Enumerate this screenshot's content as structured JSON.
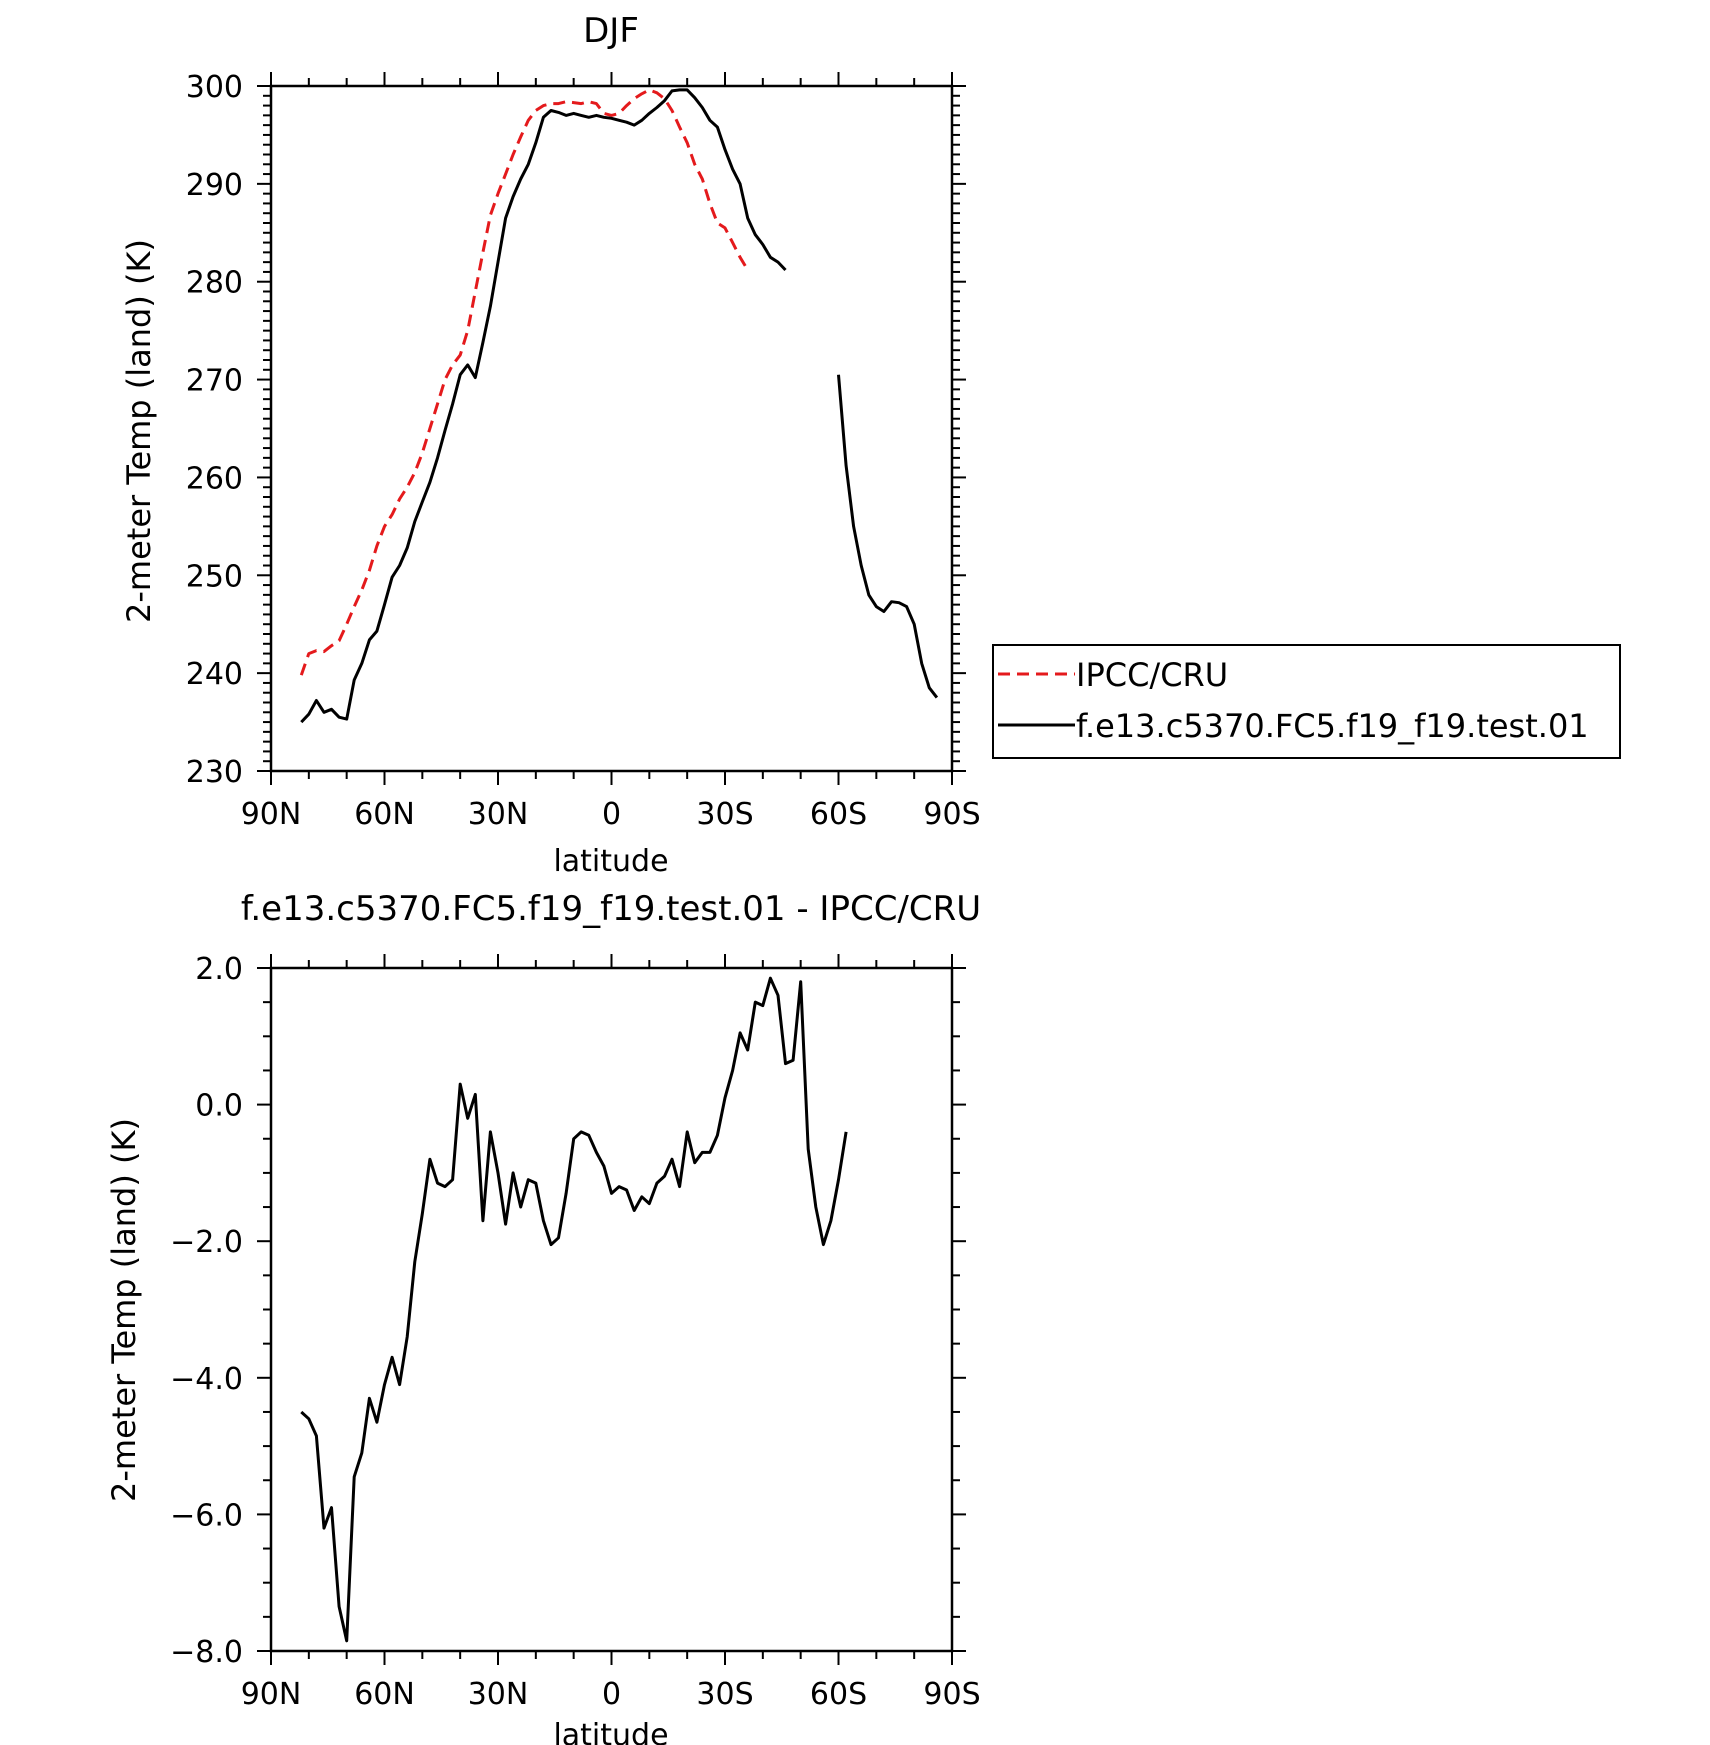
{
  "chart_data": [
    {
      "type": "line",
      "title": "DJF",
      "xlabel": "latitude",
      "ylabel": "2-meter Temp (land) (K)",
      "xlim": [
        90,
        -90
      ],
      "ylim": [
        230,
        300
      ],
      "xticks": [
        90,
        60,
        30,
        0,
        -30,
        -60,
        -90
      ],
      "xtick_labels": [
        "90N",
        "60N",
        "30N",
        "0",
        "30S",
        "60S",
        "90S"
      ],
      "yticks": [
        230,
        240,
        250,
        260,
        270,
        280,
        290,
        300
      ],
      "ytick_labels": [
        "230",
        "240",
        "250",
        "260",
        "270",
        "280",
        "290",
        "300"
      ],
      "legend_position": "right",
      "series": [
        {
          "name": "IPCC/CRU",
          "color": "#e41a1c",
          "dash": true,
          "points": [
            [
              82,
              239.8
            ],
            [
              80,
              242.0
            ],
            [
              78,
              242.3
            ],
            [
              76,
              242.2
            ],
            [
              74,
              242.8
            ],
            [
              72,
              243.3
            ],
            [
              70,
              245.0
            ],
            [
              68,
              246.8
            ],
            [
              66,
              248.5
            ],
            [
              64,
              250.5
            ],
            [
              62,
              253.0
            ],
            [
              60,
              255.0
            ],
            [
              58,
              256.2
            ],
            [
              56,
              257.8
            ],
            [
              54,
              259.0
            ],
            [
              52,
              260.5
            ],
            [
              50,
              262.5
            ],
            [
              48,
              265.0
            ],
            [
              46,
              267.5
            ],
            [
              44,
              270.0
            ],
            [
              42,
              271.5
            ],
            [
              40,
              272.5
            ],
            [
              38,
              275.0
            ],
            [
              36,
              279.0
            ],
            [
              34,
              283.0
            ],
            [
              32,
              286.8
            ],
            [
              30,
              289.0
            ],
            [
              28,
              291.0
            ],
            [
              26,
              293.0
            ],
            [
              24,
              294.8
            ],
            [
              22,
              296.5
            ],
            [
              20,
              297.5
            ],
            [
              18,
              298.0
            ],
            [
              16,
              298.2
            ],
            [
              14,
              298.2
            ],
            [
              12,
              298.4
            ],
            [
              10,
              298.3
            ],
            [
              8,
              298.2
            ],
            [
              6,
              298.4
            ],
            [
              4,
              298.2
            ],
            [
              2,
              297.2
            ],
            [
              0,
              297.0
            ],
            [
              -2,
              297.2
            ],
            [
              -4,
              298.0
            ],
            [
              -6,
              298.7
            ],
            [
              -8,
              299.2
            ],
            [
              -10,
              299.6
            ],
            [
              -12,
              299.3
            ],
            [
              -14,
              298.7
            ],
            [
              -16,
              297.5
            ],
            [
              -18,
              295.8
            ],
            [
              -20,
              294.2
            ],
            [
              -22,
              292.0
            ],
            [
              -24,
              290.5
            ],
            [
              -26,
              288.0
            ],
            [
              -28,
              286.0
            ],
            [
              -30,
              285.5
            ],
            [
              -32,
              284.0
            ],
            [
              -34,
              282.5
            ],
            [
              -36,
              281.2
            ]
          ]
        },
        {
          "name": "f.e13.c5370.FC5.f19_f19.test.01",
          "color": "#000000",
          "dash": false,
          "points": [
            [
              82,
              235.0
            ],
            [
              80,
              235.8
            ],
            [
              78,
              237.2
            ],
            [
              76,
              236.0
            ],
            [
              74,
              236.3
            ],
            [
              72,
              235.5
            ],
            [
              70,
              235.3
            ],
            [
              68,
              239.3
            ],
            [
              66,
              241.0
            ],
            [
              64,
              243.4
            ],
            [
              62,
              244.3
            ],
            [
              60,
              247.0
            ],
            [
              58,
              249.8
            ],
            [
              56,
              251.0
            ],
            [
              54,
              252.8
            ],
            [
              52,
              255.5
            ],
            [
              50,
              257.5
            ],
            [
              48,
              259.5
            ],
            [
              46,
              262.0
            ],
            [
              44,
              264.8
            ],
            [
              42,
              267.5
            ],
            [
              40,
              270.5
            ],
            [
              38,
              271.5
            ],
            [
              36,
              270.2
            ],
            [
              34,
              273.8
            ],
            [
              32,
              277.5
            ],
            [
              30,
              282.0
            ],
            [
              28,
              286.5
            ],
            [
              26,
              288.7
            ],
            [
              24,
              290.5
            ],
            [
              22,
              292.0
            ],
            [
              20,
              294.2
            ],
            [
              18,
              296.8
            ],
            [
              16,
              297.5
            ],
            [
              14,
              297.3
            ],
            [
              12,
              297.0
            ],
            [
              10,
              297.2
            ],
            [
              8,
              297.0
            ],
            [
              6,
              296.8
            ],
            [
              4,
              297.0
            ],
            [
              2,
              296.8
            ],
            [
              0,
              296.7
            ],
            [
              -2,
              296.5
            ],
            [
              -4,
              296.3
            ],
            [
              -6,
              296.0
            ],
            [
              -8,
              296.5
            ],
            [
              -10,
              297.2
            ],
            [
              -12,
              297.8
            ],
            [
              -14,
              298.5
            ],
            [
              -16,
              299.5
            ],
            [
              -18,
              299.6
            ],
            [
              -20,
              299.6
            ],
            [
              -22,
              298.8
            ],
            [
              -24,
              297.8
            ],
            [
              -26,
              296.5
            ],
            [
              -28,
              295.8
            ],
            [
              -30,
              293.5
            ],
            [
              -32,
              291.5
            ],
            [
              -34,
              290.0
            ],
            [
              -36,
              286.5
            ],
            [
              -38,
              284.8
            ],
            [
              -40,
              283.8
            ],
            [
              -42,
              282.5
            ],
            [
              -44,
              282.0
            ],
            [
              -46,
              281.2
            ],
            null,
            [
              -60,
              270.5
            ],
            [
              -62,
              261.2
            ],
            [
              -64,
              255.0
            ],
            [
              -66,
              251.0
            ],
            [
              -68,
              248.0
            ],
            [
              -70,
              246.8
            ],
            [
              -72,
              246.3
            ],
            [
              -74,
              247.3
            ],
            [
              -76,
              247.2
            ],
            [
              -78,
              246.8
            ],
            [
              -80,
              245.0
            ],
            [
              -82,
              241.0
            ],
            [
              -84,
              238.5
            ],
            [
              -86,
              237.5
            ]
          ]
        }
      ]
    },
    {
      "type": "line",
      "title": "f.e13.c5370.FC5.f19_f19.test.01 - IPCC/CRU",
      "xlabel": "latitude",
      "ylabel": "2-meter Temp (land) (K)",
      "xlim": [
        90,
        -90
      ],
      "ylim": [
        -8,
        2
      ],
      "xticks": [
        90,
        60,
        30,
        0,
        -30,
        -60,
        -90
      ],
      "xtick_labels": [
        "90N",
        "60N",
        "30N",
        "0",
        "30S",
        "60S",
        "90S"
      ],
      "yticks": [
        -8,
        -6,
        -4,
        -2,
        0,
        2
      ],
      "ytick_labels": [
        "−8.0",
        "−6.0",
        "−4.0",
        "−2.0",
        "0.0",
        "2.0"
      ],
      "series": [
        {
          "color": "#000000",
          "dash": false,
          "points": [
            [
              82,
              -4.5
            ],
            [
              80,
              -4.6
            ],
            [
              78,
              -4.85
            ],
            [
              76,
              -6.2
            ],
            [
              74,
              -5.9
            ],
            [
              72,
              -7.35
            ],
            [
              70,
              -7.85
            ],
            [
              68,
              -5.45
            ],
            [
              66,
              -5.1
            ],
            [
              64,
              -4.3
            ],
            [
              62,
              -4.65
            ],
            [
              60,
              -4.1
            ],
            [
              58,
              -3.7
            ],
            [
              56,
              -4.1
            ],
            [
              54,
              -3.4
            ],
            [
              52,
              -2.3
            ],
            [
              50,
              -1.6
            ],
            [
              48,
              -0.8
            ],
            [
              46,
              -1.15
            ],
            [
              44,
              -1.2
            ],
            [
              42,
              -1.1
            ],
            [
              40,
              0.3
            ],
            [
              38,
              -0.2
            ],
            [
              36,
              0.15
            ],
            [
              34,
              -1.7
            ],
            [
              32,
              -0.4
            ],
            [
              30,
              -1.0
            ],
            [
              28,
              -1.75
            ],
            [
              26,
              -1.0
            ],
            [
              24,
              -1.5
            ],
            [
              22,
              -1.1
            ],
            [
              20,
              -1.15
            ],
            [
              18,
              -1.7
            ],
            [
              16,
              -2.05
            ],
            [
              14,
              -1.95
            ],
            [
              12,
              -1.3
            ],
            [
              10,
              -0.5
            ],
            [
              8,
              -0.4
            ],
            [
              6,
              -0.45
            ],
            [
              4,
              -0.7
            ],
            [
              2,
              -0.9
            ],
            [
              0,
              -1.3
            ],
            [
              -2,
              -1.2
            ],
            [
              -4,
              -1.25
            ],
            [
              -6,
              -1.55
            ],
            [
              -8,
              -1.35
            ],
            [
              -10,
              -1.45
            ],
            [
              -12,
              -1.15
            ],
            [
              -14,
              -1.05
            ],
            [
              -16,
              -0.8
            ],
            [
              -18,
              -1.2
            ],
            [
              -20,
              -0.4
            ],
            [
              -22,
              -0.85
            ],
            [
              -24,
              -0.7
            ],
            [
              -26,
              -0.7
            ],
            [
              -28,
              -0.45
            ],
            [
              -30,
              0.1
            ],
            [
              -32,
              0.5
            ],
            [
              -34,
              1.05
            ],
            [
              -36,
              0.8
            ],
            [
              -38,
              1.5
            ],
            [
              -40,
              1.45
            ],
            [
              -42,
              1.85
            ],
            [
              -44,
              1.6
            ],
            [
              -46,
              0.6
            ],
            [
              -48,
              0.65
            ],
            [
              -50,
              1.8
            ],
            [
              -52,
              -0.65
            ],
            [
              -54,
              -1.5
            ],
            [
              -56,
              -2.05
            ],
            [
              -58,
              -1.7
            ],
            [
              -60,
              -1.1
            ],
            [
              -62,
              -0.4
            ]
          ]
        }
      ]
    }
  ]
}
